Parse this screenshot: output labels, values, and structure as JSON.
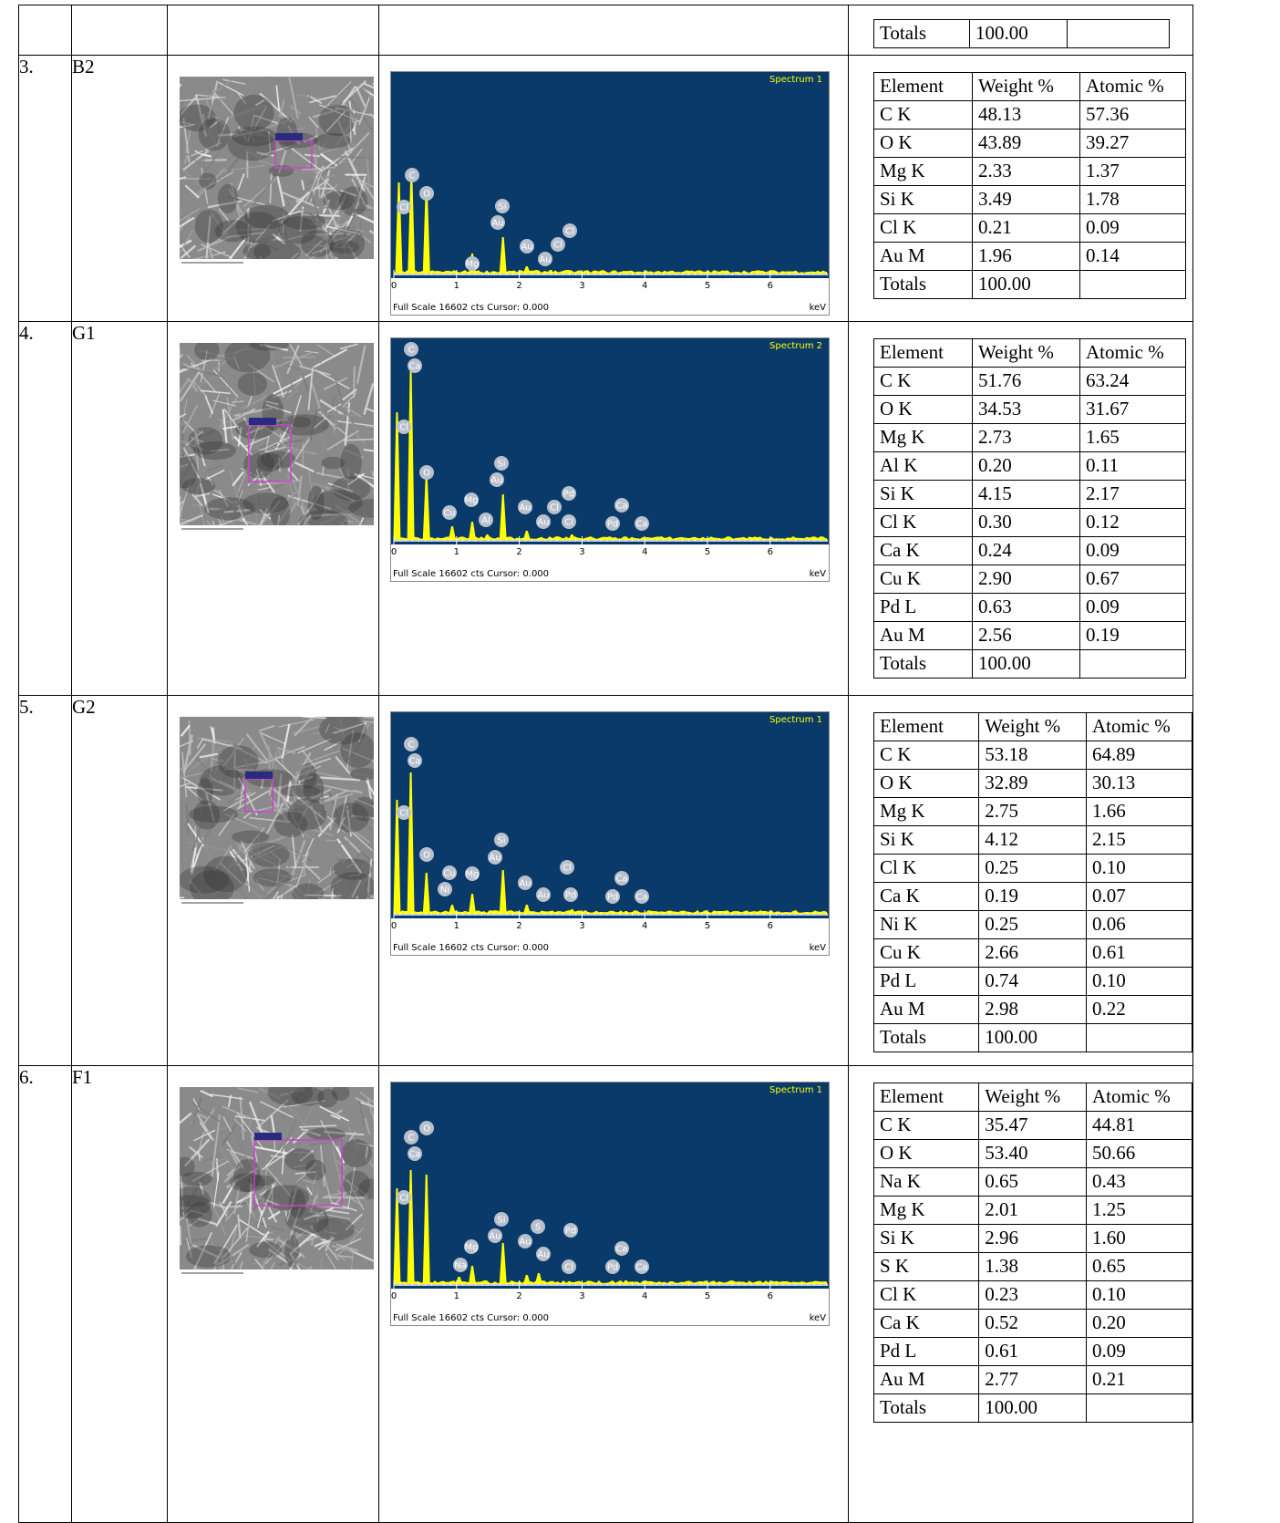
{
  "top_fragment": {
    "label": "Totals",
    "value": "100.00"
  },
  "samples": [
    {
      "number": "3.",
      "code": "B2",
      "spectrum": {
        "title": "Spectrum 1",
        "xticks": [
          0,
          1,
          2,
          3,
          4,
          5,
          6
        ],
        "footer": "Full Scale 16602 cts Cursor: 0.000",
        "unit": "keV",
        "peak_labels": [
          "C",
          "Cl",
          "O",
          "Si",
          "Au",
          "Mg",
          "Au",
          "Au",
          "Cl",
          "Cl"
        ]
      },
      "composition": {
        "header": [
          "Element",
          "Weight %",
          "Atomic %"
        ],
        "rows": [
          [
            "C K",
            "48.13",
            "57.36"
          ],
          [
            "O K",
            "43.89",
            "39.27"
          ],
          [
            "Mg K",
            "2.33",
            "1.37"
          ],
          [
            "Si K",
            "3.49",
            "1.78"
          ],
          [
            "Cl K",
            "0.21",
            "0.09"
          ],
          [
            "Au M",
            "1.96",
            "0.14"
          ]
        ],
        "totals": [
          "Totals",
          "100.00"
        ]
      }
    },
    {
      "number": "4.",
      "code": "G1",
      "spectrum": {
        "title": "Spectrum 2",
        "xticks": [
          0,
          1,
          2,
          3,
          4,
          5,
          6
        ],
        "footer": "Full Scale 16602 cts Cursor: 0.000",
        "unit": "keV",
        "peak_labels": [
          "C",
          "Ca",
          "Cl",
          "O",
          "Si",
          "Au",
          "Mg",
          "Cu",
          "Al",
          "Au",
          "Au",
          "Cl",
          "Pd",
          "Cl",
          "Ca",
          "Pd",
          "Ca"
        ]
      },
      "composition": {
        "header": [
          "Element",
          "Weight %",
          "Atomic %"
        ],
        "rows": [
          [
            "C K",
            "51.76",
            "63.24"
          ],
          [
            "O K",
            "34.53",
            "31.67"
          ],
          [
            "Mg K",
            "2.73",
            "1.65"
          ],
          [
            "Al K",
            "0.20",
            "0.11"
          ],
          [
            "Si K",
            "4.15",
            "2.17"
          ],
          [
            "Cl K",
            "0.30",
            "0.12"
          ],
          [
            "Ca K",
            "0.24",
            "0.09"
          ],
          [
            "Cu K",
            "2.90",
            "0.67"
          ],
          [
            "Pd L",
            "0.63",
            "0.09"
          ],
          [
            "Au M",
            "2.56",
            "0.19"
          ]
        ],
        "totals": [
          "Totals",
          "100.00"
        ]
      }
    },
    {
      "number": "5.",
      "code": "G2",
      "spectrum": {
        "title": "Spectrum 1",
        "xticks": [
          0,
          1,
          2,
          3,
          4,
          5,
          6
        ],
        "footer": "Full Scale 16602 cts Cursor: 0.000",
        "unit": "keV",
        "peak_labels": [
          "C",
          "Ca",
          "Cl",
          "O",
          "Si",
          "Au",
          "Cu",
          "Mg",
          "Ni",
          "Au",
          "Cl",
          "Au",
          "Pd",
          "Ca",
          "Pd",
          "Ca"
        ]
      },
      "composition": {
        "header": [
          "Element",
          "Weight %",
          "Atomic %"
        ],
        "rows": [
          [
            "C K",
            "53.18",
            "64.89"
          ],
          [
            "O K",
            "32.89",
            "30.13"
          ],
          [
            "Mg K",
            "2.75",
            "1.66"
          ],
          [
            "Si K",
            "4.12",
            "2.15"
          ],
          [
            "Cl K",
            "0.25",
            "0.10"
          ],
          [
            "Ca K",
            "0.19",
            "0.07"
          ],
          [
            "Ni K",
            "0.25",
            "0.06"
          ],
          [
            "Cu K",
            "2.66",
            "0.61"
          ],
          [
            "Pd L",
            "0.74",
            "0.10"
          ],
          [
            "Au M",
            "2.98",
            "0.22"
          ]
        ],
        "totals": [
          "Totals",
          "100.00"
        ]
      }
    },
    {
      "number": "6.",
      "code": "F1",
      "spectrum": {
        "title": "Spectrum 1",
        "xticks": [
          0,
          1,
          2,
          3,
          4,
          5,
          6
        ],
        "footer": "Full Scale 16602 cts Cursor: 0.000",
        "unit": "keV",
        "peak_labels": [
          "O",
          "C",
          "Ca",
          "Cl",
          "Si",
          "Au",
          "Mg",
          "S",
          "Pd",
          "Au",
          "Au",
          "Na",
          "Cl",
          "Ca",
          "Pd",
          "Ca"
        ]
      },
      "composition": {
        "header": [
          "Element",
          "Weight %",
          "Atomic %"
        ],
        "rows": [
          [
            "C K",
            "35.47",
            "44.81"
          ],
          [
            "O K",
            "53.40",
            "50.66"
          ],
          [
            "Na K",
            "0.65",
            "0.43"
          ],
          [
            "Mg K",
            "2.01",
            "1.25"
          ],
          [
            "Si K",
            "2.96",
            "1.60"
          ],
          [
            "S K",
            "1.38",
            "0.65"
          ],
          [
            "Cl K",
            "0.23",
            "0.10"
          ],
          [
            "Ca K",
            "0.52",
            "0.20"
          ],
          [
            "Pd L",
            "0.61",
            "0.09"
          ],
          [
            "Au M",
            "2.77",
            "0.21"
          ]
        ],
        "totals": [
          "Totals",
          "100.00"
        ]
      }
    }
  ]
}
